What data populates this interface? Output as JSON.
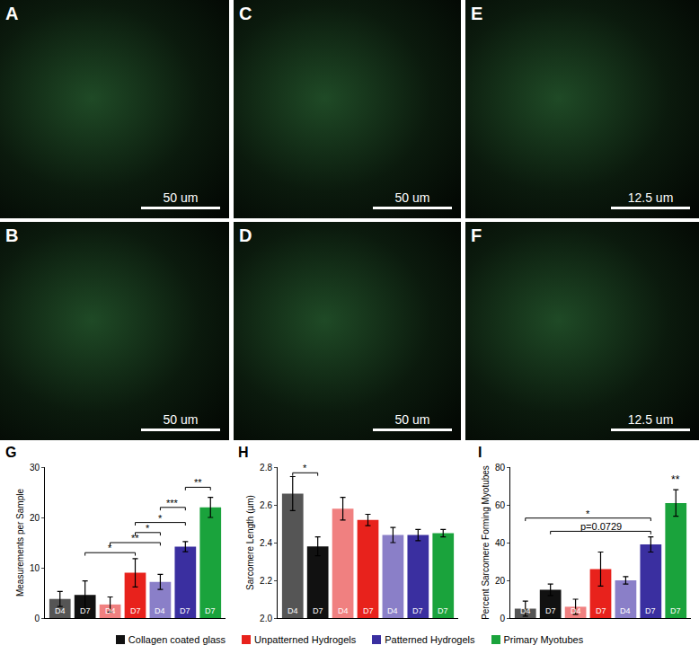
{
  "panels": [
    {
      "label": "A",
      "scale_bar": "50 um"
    },
    {
      "label": "B",
      "scale_bar": "50 um"
    },
    {
      "label": "C",
      "scale_bar": "50 um"
    },
    {
      "label": "D",
      "scale_bar": "50 um"
    },
    {
      "label": "E",
      "scale_bar": "12.5 um"
    },
    {
      "label": "F",
      "scale_bar": "12.5 um"
    }
  ],
  "figure_legend": [
    {
      "name": "Collagen coated glass",
      "color": "#111111"
    },
    {
      "name": "Unpatterned Hydrogels",
      "color": "#e8221c"
    },
    {
      "name": "Patterned Hydrogels",
      "color": "#3a2fa0"
    },
    {
      "name": "Primary Myotubes",
      "color": "#1aa33c"
    }
  ],
  "chart_data": [
    {
      "panel": "G",
      "type": "bar",
      "y_label": "Measurements per Sample",
      "categories": [
        "D4",
        "D7",
        "D4",
        "D7",
        "D4",
        "D7",
        "D7"
      ],
      "values": [
        3.8,
        4.6,
        2.7,
        9.0,
        7.2,
        14.2,
        22.0
      ],
      "errors": [
        1.5,
        2.8,
        1.5,
        2.8,
        1.5,
        1.0,
        2.0
      ],
      "colors": [
        "#555555",
        "#111111",
        "#f08080",
        "#e8221c",
        "#8a7fc8",
        "#3a2fa0",
        "#1aa33c"
      ],
      "ylim": [
        0,
        30
      ],
      "yticks": [
        0,
        10,
        20,
        30
      ],
      "grid": false,
      "tick_labels": "y",
      "brackets": [
        {
          "from": 1,
          "to": 3,
          "y": 13,
          "label": "*"
        },
        {
          "from": 2,
          "to": 4,
          "y": 15,
          "label": "**"
        },
        {
          "from": 3,
          "to": 4,
          "y": 17,
          "label": "*"
        },
        {
          "from": 3,
          "to": 5,
          "y": 19,
          "label": "*"
        },
        {
          "from": 4,
          "to": 5,
          "y": 22,
          "label": "***"
        },
        {
          "from": 5,
          "to": 6,
          "y": 26,
          "label": "**"
        }
      ]
    },
    {
      "panel": "H",
      "type": "bar",
      "y_label": "Sarcomere Length (µm)",
      "categories": [
        "D4",
        "D7",
        "D4",
        "D7",
        "D4",
        "D7",
        "D7"
      ],
      "values": [
        2.66,
        2.38,
        2.58,
        2.52,
        2.44,
        2.44,
        2.45
      ],
      "errors": [
        0.09,
        0.05,
        0.06,
        0.03,
        0.04,
        0.03,
        0.02
      ],
      "colors": [
        "#555555",
        "#111111",
        "#f08080",
        "#e8221c",
        "#8a7fc8",
        "#3a2fa0",
        "#1aa33c"
      ],
      "ylim": [
        2.0,
        2.8
      ],
      "yticks": [
        {
          "value": 2.0,
          "label": "2.0"
        },
        2.2,
        2.4,
        2.6,
        2.8
      ],
      "grid": false,
      "tick_labels": "y",
      "brackets": [
        {
          "from": 0,
          "to": 1,
          "y": 2.77,
          "label": "*"
        }
      ]
    },
    {
      "panel": "I",
      "type": "bar",
      "y_label": "Percent Sarcomere Forming Myotubes",
      "categories": [
        "D4",
        "D7",
        "D4",
        "D7",
        "D4",
        "D7",
        "D7"
      ],
      "values": [
        5,
        15,
        6,
        26,
        20,
        39,
        61
      ],
      "errors": [
        4,
        3,
        4,
        9,
        2,
        4,
        7
      ],
      "colors": [
        "#555555",
        "#111111",
        "#f08080",
        "#e8221c",
        "#8a7fc8",
        "#3a2fa0",
        "#1aa33c"
      ],
      "ylim": [
        0,
        80
      ],
      "yticks": [
        0,
        20,
        40,
        60,
        80
      ],
      "grid": false,
      "tick_labels": "y",
      "brackets": [
        {
          "from": 1,
          "to": 5,
          "y": 46,
          "label": "p=0.0729"
        },
        {
          "from": 0,
          "to": 5,
          "y": 53,
          "label": "*"
        }
      ],
      "annotations": [
        {
          "x": 6,
          "y": 69,
          "text": "**"
        }
      ]
    }
  ]
}
